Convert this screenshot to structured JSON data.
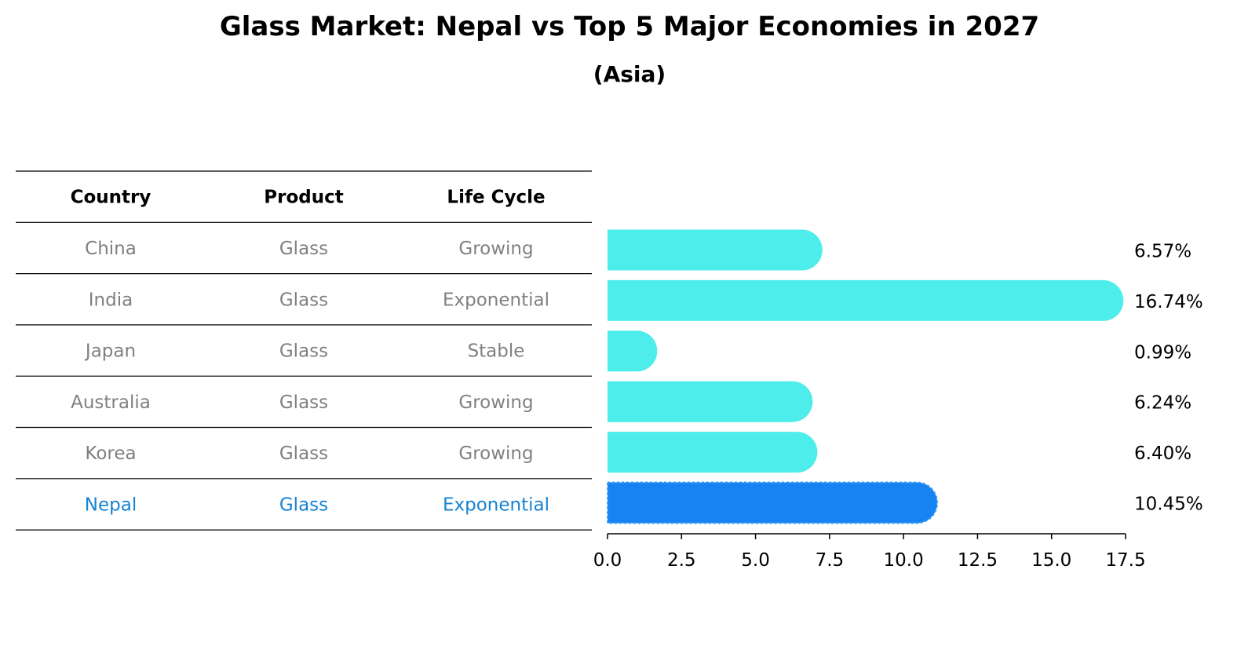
{
  "title": "Glass Market: Nepal vs Top 5 Major Economies in 2027",
  "subtitle": "(Asia)",
  "colors": {
    "bar": "#4DEDEB",
    "highlight": "#1783F3",
    "muted_text": "#808080",
    "highlight_text": "#1783D3"
  },
  "table": {
    "headers": [
      "Country",
      "Product",
      "Life Cycle"
    ],
    "rows": [
      {
        "country": "China",
        "product": "Glass",
        "life_cycle": "Growing"
      },
      {
        "country": "India",
        "product": "Glass",
        "life_cycle": "Exponential"
      },
      {
        "country": "Japan",
        "product": "Glass",
        "life_cycle": "Stable"
      },
      {
        "country": "Australia",
        "product": "Glass",
        "life_cycle": "Growing"
      },
      {
        "country": "Korea",
        "product": "Glass",
        "life_cycle": "Growing"
      },
      {
        "country": "Nepal",
        "product": "Glass",
        "life_cycle": "Exponential",
        "highlight": true
      }
    ]
  },
  "chart_data": {
    "type": "bar",
    "orientation": "horizontal",
    "categories": [
      "China",
      "India",
      "Japan",
      "Australia",
      "Korea",
      "Nepal"
    ],
    "values": [
      6.57,
      16.74,
      0.99,
      6.24,
      6.4,
      10.45
    ],
    "value_labels": [
      "6.57%",
      "16.74%",
      "0.99%",
      "6.24%",
      "6.40%",
      "10.45%"
    ],
    "highlight": "Nepal",
    "xlim": [
      0,
      17.5
    ],
    "xticks": [
      0,
      2.5,
      5,
      7.5,
      10,
      12.5,
      15,
      17.5
    ],
    "xtick_labels": [
      "0.0",
      "2.5",
      "5.0",
      "7.5",
      "10.0",
      "12.5",
      "15.0",
      "17.5"
    ],
    "xlabel": "",
    "ylabel": "",
    "grid": false
  }
}
